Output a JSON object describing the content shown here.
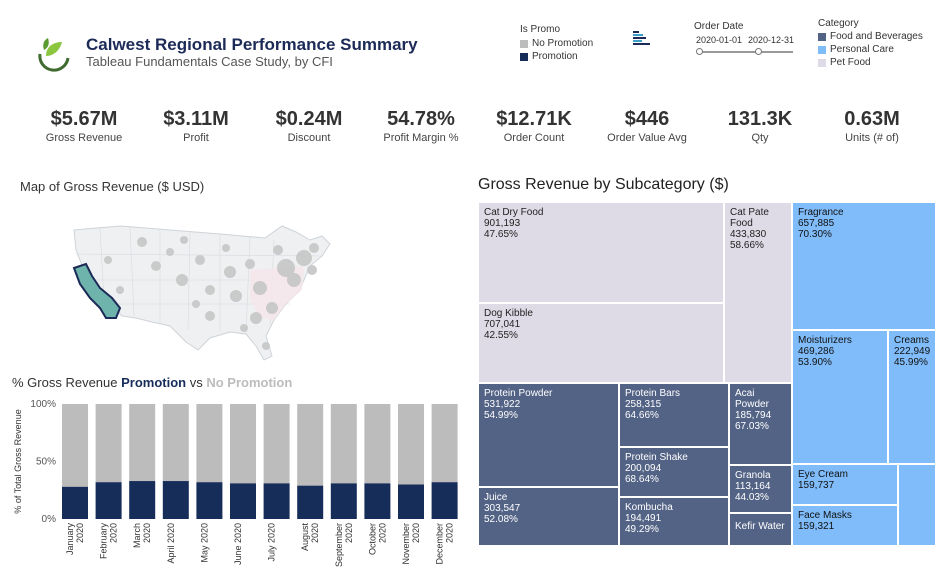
{
  "header": {
    "title": "Calwest Regional Performance Summary",
    "subtitle": "Tableau Fundamentals Case Study, by CFI"
  },
  "promo_legend": {
    "title": "Is Promo",
    "items": [
      {
        "label": "No Promotion",
        "color": "#bcbcbc"
      },
      {
        "label": "Promotion",
        "color": "#162d5a"
      }
    ]
  },
  "order_date": {
    "title": "Order Date",
    "start": "2020-01-01",
    "end": "2020-12-31"
  },
  "category_legend": {
    "title": "Category",
    "items": [
      {
        "label": "Food and Beverages",
        "color": "#536385"
      },
      {
        "label": "Personal Care",
        "color": "#7fbcf9"
      },
      {
        "label": "Pet Food",
        "color": "#dfdbe6"
      }
    ]
  },
  "kpis": [
    {
      "value": "$5.67M",
      "label": "Gross Revenue"
    },
    {
      "value": "$3.11M",
      "label": "Profit"
    },
    {
      "value": "$0.24M",
      "label": "Discount"
    },
    {
      "value": "54.78%",
      "label": "Profit Margin %"
    },
    {
      "value": "$12.71K",
      "label": "Order Count"
    },
    {
      "value": "$446",
      "label": "Order Value Avg"
    },
    {
      "value": "131.3K",
      "label": "Qty"
    },
    {
      "value": "0.63M",
      "label": "Units (# of)"
    }
  ],
  "map": {
    "title": "Map of Gross Revenue ($ USD)",
    "highlight_color": "#6fb3ad"
  },
  "promo_chart_title": {
    "prefix": "% Gross Revenue ",
    "promotion": "Promotion",
    "middle": " vs ",
    "no_promotion": "No Promotion"
  },
  "treemap": {
    "title": "Gross Revenue by Subcategory ($)",
    "cells": [
      {
        "name": "Cat Dry Food",
        "value": "901,193",
        "pct": "47.65%",
        "category": "pet"
      },
      {
        "name": "Dog Kibble",
        "value": "707,041",
        "pct": "42.55%",
        "category": "pet"
      },
      {
        "name": "Cat Pate Food",
        "name2": "Food",
        "value": "433,830",
        "pct": "58.66%",
        "category": "pet"
      },
      {
        "name": "Fragrance",
        "value": "657,885",
        "pct": "70.30%",
        "category": "care"
      },
      {
        "name": "Moisturizers",
        "value": "469,286",
        "pct": "53.90%",
        "category": "care"
      },
      {
        "name": "Creams",
        "value": "222,949",
        "pct": "45.99%",
        "category": "care"
      },
      {
        "name": "Eye Cream",
        "value": "159,737",
        "pct": "",
        "category": "care"
      },
      {
        "name": "Face Masks",
        "value": "159,321",
        "pct": "",
        "category": "care"
      },
      {
        "name": "Protein Powder",
        "value": "531,922",
        "pct": "54.99%",
        "category": "food"
      },
      {
        "name": "Protein Bars",
        "value": "258,315",
        "pct": "64.66%",
        "category": "food"
      },
      {
        "name": "Acai Powder",
        "name2": "Powder",
        "value": "185,794",
        "pct": "67.03%",
        "category": "food"
      },
      {
        "name": "Protein Shake",
        "value": "200,094",
        "pct": "68.64%",
        "category": "food"
      },
      {
        "name": "Granola",
        "value": "113,164",
        "pct": "44.03%",
        "category": "food"
      },
      {
        "name": "Juice",
        "value": "303,547",
        "pct": "52.08%",
        "category": "food"
      },
      {
        "name": "Kombucha",
        "value": "194,491",
        "pct": "49.29%",
        "category": "food"
      },
      {
        "name": "Kefir Water",
        "value": "",
        "pct": "",
        "category": "food"
      }
    ]
  },
  "chart_data": {
    "type": "bar",
    "stacked": true,
    "ylabel": "% of Total Gross Revenue",
    "ylim": [
      0,
      100
    ],
    "yticks": [
      "0%",
      "50%",
      "100%"
    ],
    "grid": false,
    "categories": [
      "January 2020",
      "February 2020",
      "March 2020",
      "April 2020",
      "May 2020",
      "June 2020",
      "July 2020",
      "August 2020",
      "September 2020",
      "October 2020",
      "November 2020",
      "December 2020"
    ],
    "category_lines": [
      [
        "January",
        "2020"
      ],
      [
        "February",
        "2020"
      ],
      [
        "March",
        "2020"
      ],
      [
        "April 2020",
        ""
      ],
      [
        "May 2020",
        ""
      ],
      [
        "June 2020",
        ""
      ],
      [
        "July 2020",
        ""
      ],
      [
        "August",
        "2020"
      ],
      [
        "September",
        "2020"
      ],
      [
        "October",
        "2020"
      ],
      [
        "November",
        "2020"
      ],
      [
        "December",
        "2020"
      ]
    ],
    "series": [
      {
        "name": "Promotion",
        "color": "#162d5a",
        "values": [
          28,
          32,
          33,
          33,
          32,
          31,
          31,
          29,
          31,
          31,
          30,
          32
        ]
      },
      {
        "name": "No Promotion",
        "color": "#bcbcbc",
        "values": [
          72,
          68,
          67,
          67,
          68,
          69,
          69,
          71,
          69,
          69,
          70,
          68
        ]
      }
    ]
  }
}
